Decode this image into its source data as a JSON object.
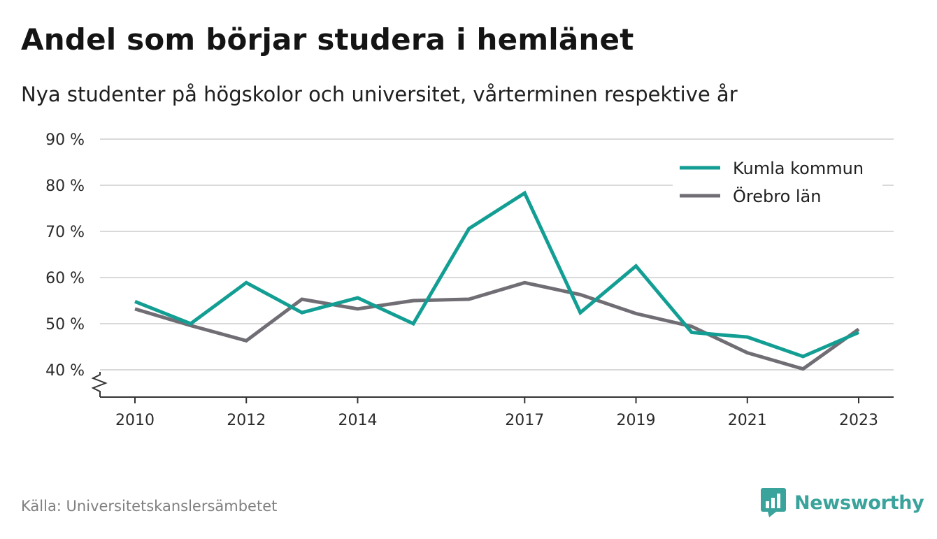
{
  "header": {
    "title": "Andel som börjar studera i hemlänet",
    "subtitle": "Nya studenter på högskolor och universitet, vårterminen respektive år"
  },
  "footer": {
    "source": "Källa: Universitetskanslersämbetet",
    "brand": "Newsworthy",
    "brand_icon": "bar-chart-speech-bubble-icon"
  },
  "colors": {
    "kumla": "#139e94",
    "orebro": "#706e74",
    "grid": "#d9d9d9",
    "axis": "#333333",
    "brand": "#3aa39b"
  },
  "chart_data": {
    "type": "line",
    "ylim": [
      40,
      90
    ],
    "y_axis_broken_below": true,
    "y_ticks": [
      40,
      50,
      60,
      70,
      80,
      90
    ],
    "y_tick_labels": [
      "40 %",
      "50 %",
      "60 %",
      "70 %",
      "80 %",
      "90 %"
    ],
    "x_ticks": [
      2010,
      2012,
      2014,
      2017,
      2019,
      2021,
      2023
    ],
    "x_tick_labels": [
      "2010",
      "2012",
      "2014",
      "2017",
      "2019",
      "2021",
      "2023"
    ],
    "x": [
      2010,
      2011,
      2012,
      2013,
      2014,
      2015,
      2016,
      2017,
      2018,
      2019,
      2020,
      2021,
      2022,
      2023
    ],
    "legend_position": "top-right",
    "grid": true,
    "series": [
      {
        "name": "Kumla kommun",
        "color": "#139e94",
        "values": [
          54.8,
          50.0,
          58.9,
          52.4,
          55.6,
          50.0,
          70.6,
          78.3,
          52.4,
          62.5,
          48.1,
          47.1,
          42.9,
          48.1
        ]
      },
      {
        "name": "Örebro län",
        "color": "#706e74",
        "values": [
          53.2,
          49.6,
          46.3,
          55.3,
          53.2,
          55.0,
          55.3,
          58.9,
          56.3,
          52.2,
          49.4,
          43.7,
          40.2,
          48.8
        ]
      }
    ]
  }
}
